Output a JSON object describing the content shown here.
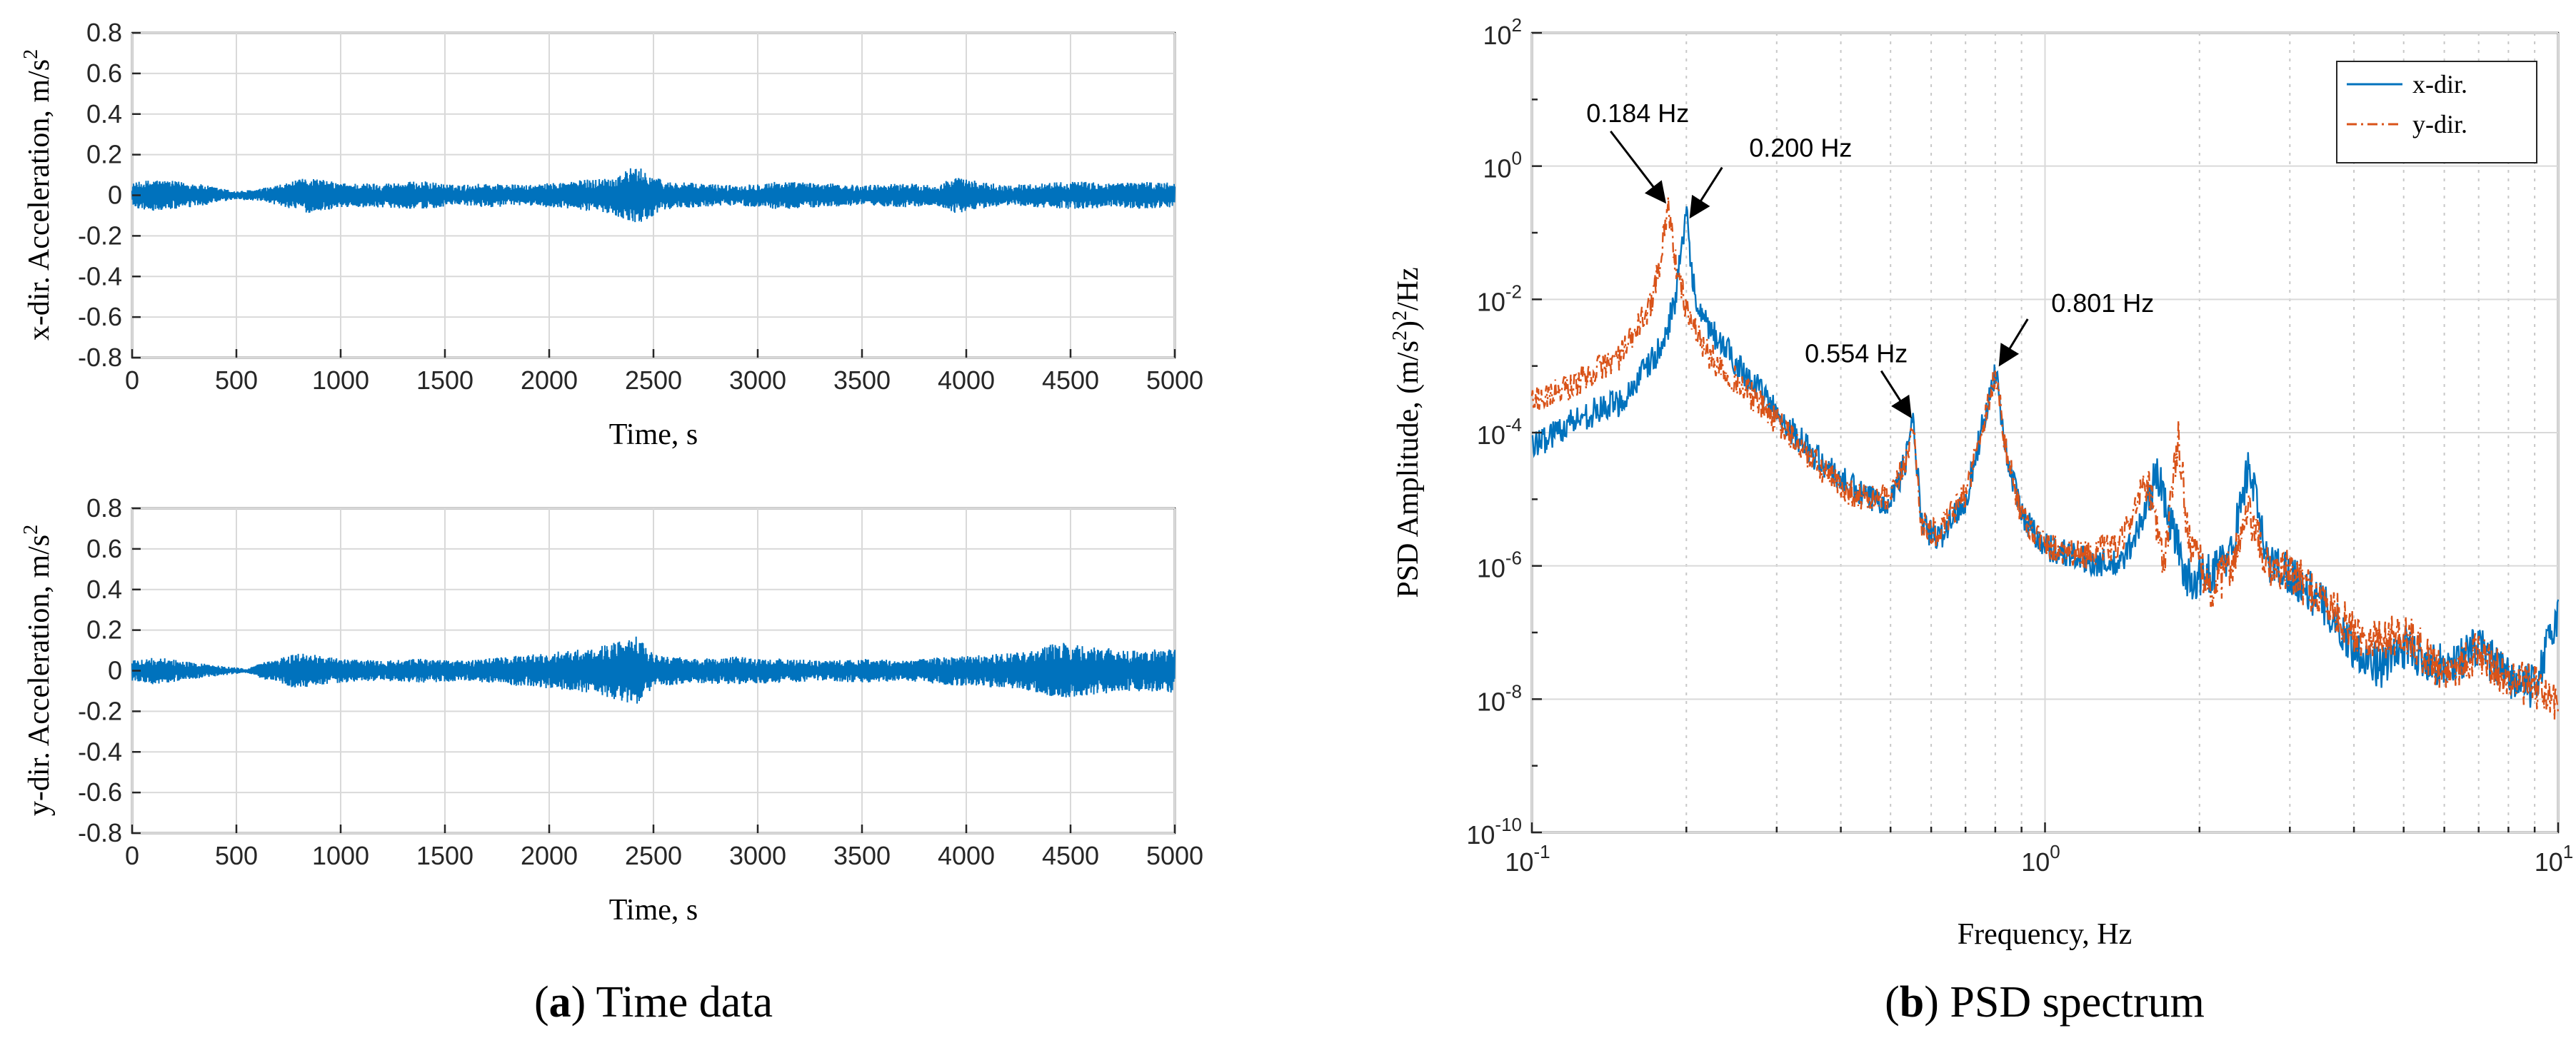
{
  "chart_data": [
    {
      "type": "line",
      "panel": "a-top",
      "title": "",
      "xlabel": "Time, s",
      "ylabel": "x-dir. Acceleration, m/s",
      "ylabel_sup": "2",
      "xlim": [
        0,
        5000
      ],
      "ylim": [
        -0.8,
        0.8
      ],
      "xticks": [
        0,
        500,
        1000,
        1500,
        2000,
        2500,
        3000,
        3500,
        4000,
        4500,
        5000
      ],
      "yticks": [
        "-0.8",
        "-0.6",
        "-0.4",
        "-0.2",
        "0",
        "0.2",
        "0.4",
        "0.6",
        "0.8"
      ],
      "grid": true,
      "color": "#0072BD",
      "envelope": {
        "t": [
          0,
          100,
          300,
          500,
          600,
          700,
          850,
          1000,
          1200,
          1400,
          1550,
          1700,
          1900,
          2100,
          2300,
          2400,
          2450,
          2550,
          2700,
          2900,
          3100,
          3300,
          3500,
          3700,
          3850,
          3950,
          4050,
          4200,
          4350,
          4500,
          4700,
          4850,
          5000
        ],
        "amp": [
          0.06,
          0.08,
          0.06,
          0.02,
          0.03,
          0.05,
          0.09,
          0.06,
          0.06,
          0.07,
          0.05,
          0.06,
          0.05,
          0.07,
          0.09,
          0.14,
          0.13,
          0.07,
          0.06,
          0.05,
          0.07,
          0.06,
          0.05,
          0.06,
          0.05,
          0.09,
          0.07,
          0.05,
          0.06,
          0.07,
          0.06,
          0.07,
          0.06
        ]
      }
    },
    {
      "type": "line",
      "panel": "a-bottom",
      "title": "",
      "xlabel": "Time, s",
      "ylabel": "y-dir. Acceleration, m/s",
      "ylabel_sup": "2",
      "xlim": [
        0,
        5000
      ],
      "ylim": [
        -0.8,
        0.8
      ],
      "xticks": [
        0,
        500,
        1000,
        1500,
        2000,
        2500,
        3000,
        3500,
        4000,
        4500,
        5000
      ],
      "yticks": [
        "-0.8",
        "-0.6",
        "-0.4",
        "-0.2",
        "0",
        "0.2",
        "0.4",
        "0.6",
        "0.8"
      ],
      "grid": true,
      "color": "#0072BD",
      "envelope": {
        "t": [
          0,
          100,
          300,
          550,
          650,
          800,
          1000,
          1200,
          1400,
          1600,
          1800,
          2000,
          2200,
          2350,
          2420,
          2500,
          2700,
          2900,
          3100,
          3300,
          3500,
          3700,
          3900,
          4100,
          4300,
          4450,
          4600,
          4800,
          5000
        ],
        "amp": [
          0.05,
          0.07,
          0.04,
          0.01,
          0.05,
          0.09,
          0.06,
          0.05,
          0.06,
          0.05,
          0.07,
          0.09,
          0.11,
          0.15,
          0.17,
          0.08,
          0.06,
          0.07,
          0.06,
          0.05,
          0.06,
          0.05,
          0.07,
          0.08,
          0.1,
          0.14,
          0.12,
          0.1,
          0.11
        ]
      }
    },
    {
      "type": "line",
      "panel": "b",
      "title": "",
      "xlabel": "Frequency, Hz",
      "ylabel_parts": [
        "PSD Amplitude, (m/s",
        "2",
        ")",
        "2",
        "/Hz"
      ],
      "xscale": "log",
      "yscale": "log",
      "xlim": [
        0.1,
        10
      ],
      "ylim": [
        1e-10,
        100
      ],
      "xticks": [
        {
          "base": "10",
          "exp": "-1"
        },
        {
          "base": "10",
          "exp": "0"
        },
        {
          "base": "10",
          "exp": "1"
        }
      ],
      "yticks": [
        {
          "base": "10",
          "exp": "-10"
        },
        {
          "base": "10",
          "exp": "-8"
        },
        {
          "base": "10",
          "exp": "-6"
        },
        {
          "base": "10",
          "exp": "-4"
        },
        {
          "base": "10",
          "exp": "-2"
        },
        {
          "base": "10",
          "exp": "0"
        },
        {
          "base": "10",
          "exp": "2"
        }
      ],
      "grid": true,
      "legend_position": "top-right",
      "series": [
        {
          "name": "x-dir.",
          "color": "#0072BD",
          "style": "solid",
          "f": [
            0.1,
            0.12,
            0.15,
            0.18,
            0.19,
            0.195,
            0.2,
            0.205,
            0.21,
            0.23,
            0.26,
            0.3,
            0.35,
            0.4,
            0.45,
            0.5,
            0.53,
            0.554,
            0.575,
            0.62,
            0.7,
            0.76,
            0.801,
            0.84,
            0.9,
            1.0,
            1.2,
            1.4,
            1.55,
            1.65,
            1.75,
            1.9,
            2.1,
            2.3,
            2.5,
            2.7,
            3.0,
            3.5,
            4.0,
            4.5,
            5.0,
            6.0,
            7.0,
            8.0,
            9.0,
            10.0
          ],
          "psd": [
            6e-05,
            0.00015,
            0.0003,
            0.002,
            0.01,
            0.04,
            0.18,
            0.03,
            0.006,
            0.0025,
            0.0008,
            0.0002,
            5e-05,
            2e-05,
            1e-05,
            1e-05,
            3e-05,
            0.00015,
            4e-06,
            2.5e-06,
            1e-05,
            0.00015,
            0.0009,
            5e-05,
            6e-06,
            2e-06,
            1.2e-06,
            1e-06,
            5e-06,
            2.5e-05,
            5e-06,
            6e-07,
            8e-07,
            1.5e-06,
            3.5e-05,
            1.2e-06,
            8e-07,
            2.5e-07,
            6e-08,
            3e-08,
            6e-08,
            3e-08,
            6e-08,
            2e-08,
            1.5e-08,
            2e-07
          ]
        },
        {
          "name": "y-dir.",
          "color": "#D95319",
          "style": "dash-dot",
          "f": [
            0.1,
            0.12,
            0.15,
            0.17,
            0.178,
            0.184,
            0.19,
            0.2,
            0.22,
            0.25,
            0.3,
            0.35,
            0.4,
            0.45,
            0.5,
            0.53,
            0.554,
            0.575,
            0.62,
            0.7,
            0.76,
            0.801,
            0.84,
            0.9,
            1.0,
            1.2,
            1.4,
            1.55,
            1.6,
            1.7,
            1.82,
            1.9,
            2.1,
            2.3,
            2.5,
            2.7,
            3.0,
            3.5,
            4.0,
            4.5,
            5.0,
            6.0,
            7.0,
            8.0,
            9.0,
            10.0
          ],
          "psd": [
            0.0003,
            0.0005,
            0.0015,
            0.008,
            0.04,
            0.28,
            0.04,
            0.007,
            0.0015,
            0.0006,
            0.00015,
            4e-05,
            1.5e-05,
            1e-05,
            1e-05,
            3e-05,
            0.00012,
            4e-06,
            3e-06,
            1.2e-05,
            0.00015,
            0.0008,
            5e-05,
            6e-06,
            2e-06,
            1.5e-06,
            2e-06,
            1.5e-05,
            1.2e-05,
            1e-06,
            8e-05,
            3e-06,
            4e-07,
            1e-06,
            6e-06,
            1e-06,
            8e-07,
            3e-07,
            1e-07,
            8e-08,
            1e-07,
            2.5e-08,
            5e-08,
            2e-08,
            1.5e-08,
            8e-09
          ]
        }
      ],
      "annotations": [
        {
          "label": "0.184 Hz",
          "f": 0.184,
          "psd": 0.25
        },
        {
          "label": "0.200 Hz",
          "f": 0.2,
          "psd": 0.15
        },
        {
          "label": "0.554 Hz",
          "f": 0.554,
          "psd": 0.00015
        },
        {
          "label": "0.801 Hz",
          "f": 0.801,
          "psd": 0.0009
        }
      ]
    }
  ],
  "captions": {
    "a_letter": "a",
    "a_text": " Time data",
    "b_letter": "b",
    "b_text": " PSD spectrum"
  }
}
